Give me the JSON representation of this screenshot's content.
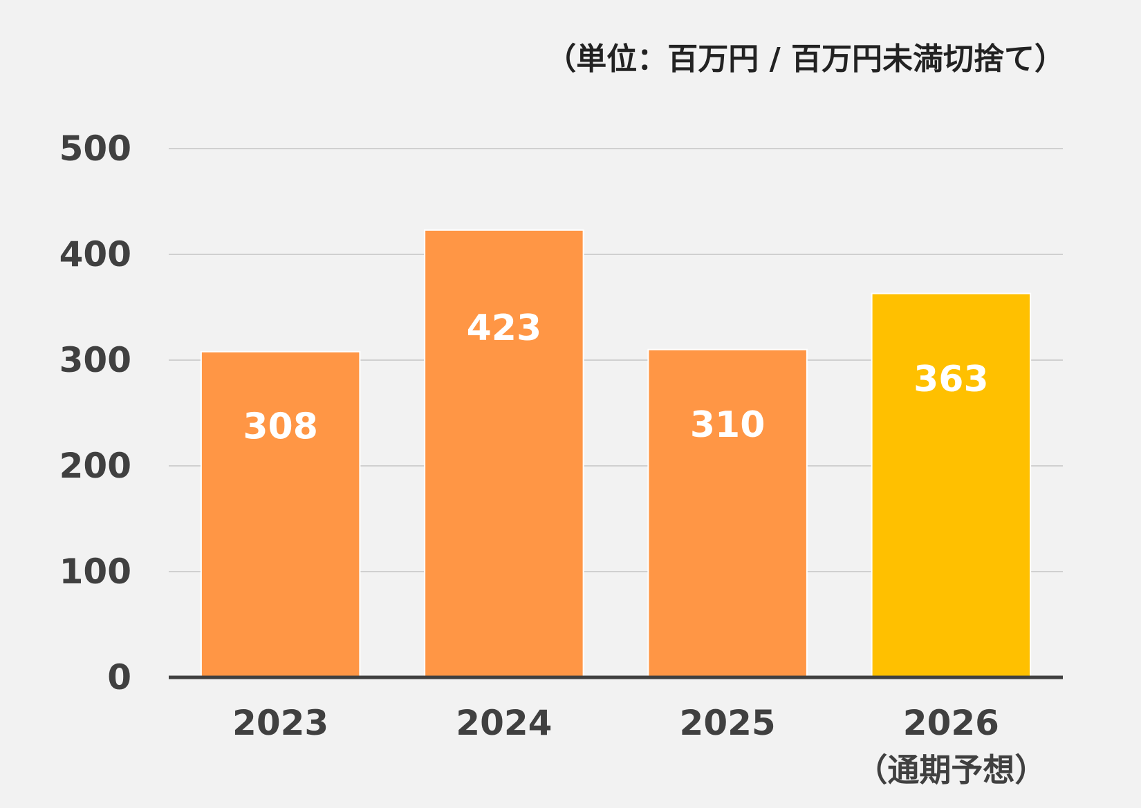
{
  "chart_data": {
    "type": "bar",
    "unit_note": "（単位：百万円 / 百万円未満切捨て）",
    "categories": [
      "2023",
      "2024",
      "2025",
      "2026"
    ],
    "category_sublabels": [
      "",
      "",
      "",
      "（通期予想）"
    ],
    "values": [
      308,
      423,
      310,
      363
    ],
    "data_labels": [
      "308",
      "423",
      "310",
      "363"
    ],
    "y_ticks": [
      "0",
      "100",
      "200",
      "300",
      "400",
      "500"
    ],
    "ylim": [
      0,
      500
    ],
    "grid": true,
    "legend": "none",
    "colors": {
      "actual": "#FF9645",
      "forecast": "#FFC000",
      "grid": "#d0d0d0",
      "axis": "#404040",
      "background": "#f2f2f2"
    },
    "bar_color_keys": [
      "actual",
      "actual",
      "actual",
      "forecast"
    ]
  }
}
